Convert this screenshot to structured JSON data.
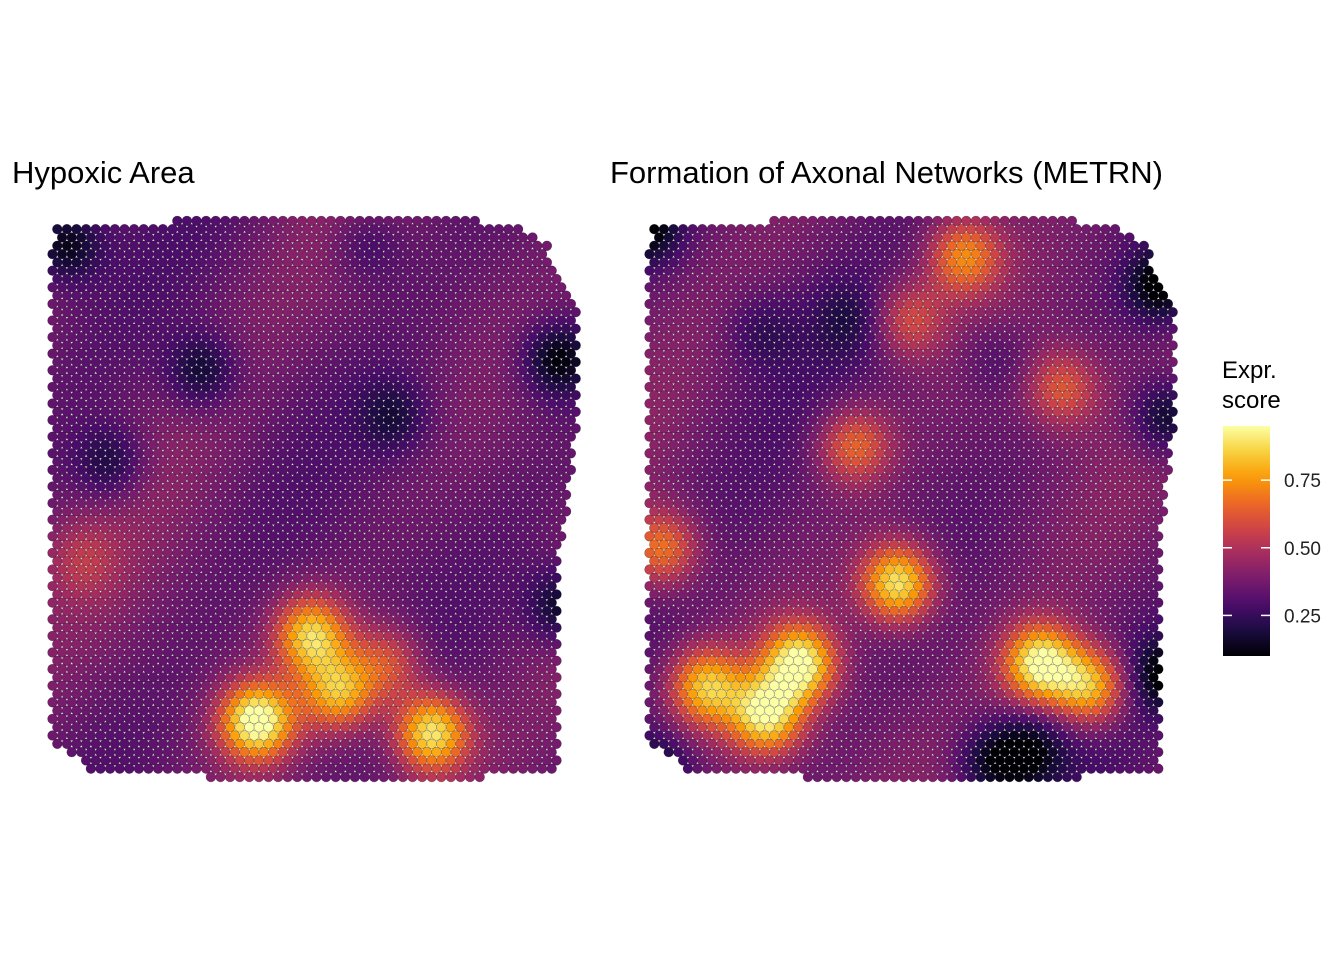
{
  "chart_data": {
    "type": "heatmap",
    "palette": [
      "#000004",
      "#1b0c41",
      "#4a0c6b",
      "#781c6d",
      "#a52c60",
      "#cf4446",
      "#ed6925",
      "#fb9b06",
      "#f7d13d",
      "#fcffa4"
    ],
    "panels": [
      {
        "title": "Hypoxic Area",
        "hotspots": [
          {
            "u": 0.4,
            "v": 0.88,
            "value": 0.98
          },
          {
            "u": 0.5,
            "v": 0.73,
            "value": 0.85
          },
          {
            "u": 0.55,
            "v": 0.83,
            "value": 0.8
          },
          {
            "u": 0.72,
            "v": 0.9,
            "value": 0.92
          },
          {
            "u": 0.64,
            "v": 0.78,
            "value": 0.62
          },
          {
            "u": 0.08,
            "v": 0.6,
            "value": 0.48
          }
        ],
        "coldspots": [
          {
            "u": 0.05,
            "v": 0.05,
            "value": 0.12
          },
          {
            "u": 0.95,
            "v": 0.25,
            "value": 0.1
          },
          {
            "u": 0.96,
            "v": 0.68,
            "value": 0.12
          },
          {
            "u": 0.3,
            "v": 0.27,
            "value": 0.15
          },
          {
            "u": 0.13,
            "v": 0.43,
            "value": 0.18
          },
          {
            "u": 0.65,
            "v": 0.35,
            "value": 0.2
          },
          {
            "u": 0.6,
            "v": 0.05,
            "value": 0.25
          }
        ]
      },
      {
        "title": "Formation of Axonal Networks (METRN)",
        "hotspots": [
          {
            "u": 0.3,
            "v": 0.78,
            "value": 0.95
          },
          {
            "u": 0.24,
            "v": 0.87,
            "value": 0.9
          },
          {
            "u": 0.48,
            "v": 0.64,
            "value": 0.92
          },
          {
            "u": 0.74,
            "v": 0.78,
            "value": 0.95
          },
          {
            "u": 0.83,
            "v": 0.82,
            "value": 0.85
          },
          {
            "u": 0.13,
            "v": 0.82,
            "value": 0.82
          },
          {
            "u": 0.6,
            "v": 0.07,
            "value": 0.72
          },
          {
            "u": 0.5,
            "v": 0.18,
            "value": 0.6
          },
          {
            "u": 0.05,
            "v": 0.58,
            "value": 0.7
          },
          {
            "u": 0.4,
            "v": 0.4,
            "value": 0.66
          },
          {
            "u": 0.78,
            "v": 0.3,
            "value": 0.62
          }
        ],
        "coldspots": [
          {
            "u": 0.02,
            "v": 0.02,
            "value": 0.1
          },
          {
            "u": 0.96,
            "v": 0.12,
            "value": 0.08
          },
          {
            "u": 0.97,
            "v": 0.35,
            "value": 0.12
          },
          {
            "u": 0.97,
            "v": 0.8,
            "value": 0.1
          },
          {
            "u": 0.65,
            "v": 0.95,
            "value": 0.15
          },
          {
            "u": 0.72,
            "v": 0.93,
            "value": 0.15
          },
          {
            "u": 0.04,
            "v": 0.97,
            "value": 0.12
          },
          {
            "u": 0.23,
            "v": 0.2,
            "value": 0.25
          },
          {
            "u": 0.39,
            "v": 0.18,
            "value": 0.25
          },
          {
            "u": 0.66,
            "v": 0.25,
            "value": 0.28
          }
        ]
      }
    ],
    "legend": {
      "title_line1": "Expr.",
      "title_line2": "score",
      "ticks": [
        0.25,
        0.5,
        0.75
      ],
      "tick_labels": [
        "0.25",
        "0.50",
        "0.75"
      ],
      "range": [
        0.1,
        0.95
      ]
    }
  }
}
